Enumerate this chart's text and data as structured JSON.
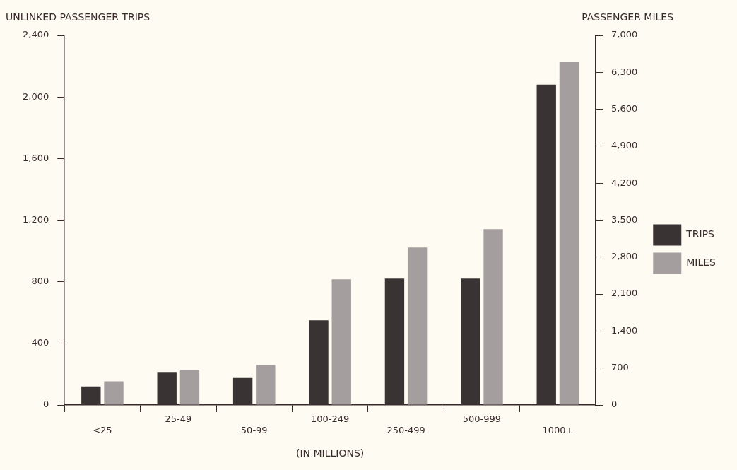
{
  "chart_data": {
    "type": "bar",
    "xlabel": "(IN MILLIONS)",
    "ylabel": "UNLINKED PASSENGER TRIPS",
    "y2label": "PASSENGER MILES",
    "categories": [
      "<25",
      "25-49",
      "50-99",
      "100-249",
      "250-499",
      "500-999",
      "1000+"
    ],
    "series": [
      {
        "name": "TRIPS",
        "color": "#3a3334",
        "values": [
          120,
          210,
          175,
          550,
          820,
          820,
          2080
        ]
      },
      {
        "name": "MILES",
        "color": "#a59e9f",
        "axis": "y2",
        "values": [
          450,
          670,
          760,
          2380,
          2980,
          3330,
          6490
        ]
      }
    ],
    "ylim": [
      0,
      2400
    ],
    "yticks": [
      {
        "value": 0,
        "label": "0"
      },
      {
        "value": 400,
        "label": "400"
      },
      {
        "value": 800,
        "label": "800"
      },
      {
        "value": 1200,
        "label": "1,200"
      },
      {
        "value": 1600,
        "label": "1,600"
      },
      {
        "value": 2000,
        "label": "2,000"
      },
      {
        "value": 2400,
        "label": "2,400"
      }
    ],
    "y2lim": [
      0,
      7000
    ],
    "y2ticks": [
      {
        "value": 0,
        "label": "0"
      },
      {
        "value": 700,
        "label": "700"
      },
      {
        "value": 1400,
        "label": "1,400"
      },
      {
        "value": 2100,
        "label": "2,100"
      },
      {
        "value": 2800,
        "label": "2,800"
      },
      {
        "value": 3500,
        "label": "3,500"
      },
      {
        "value": 4200,
        "label": "4,200"
      },
      {
        "value": 4900,
        "label": "4,900"
      },
      {
        "value": 5600,
        "label": "5,600"
      },
      {
        "value": 6300,
        "label": "6,300"
      },
      {
        "value": 7000,
        "label": "7,000"
      }
    ],
    "grid": false,
    "legend": "right"
  }
}
